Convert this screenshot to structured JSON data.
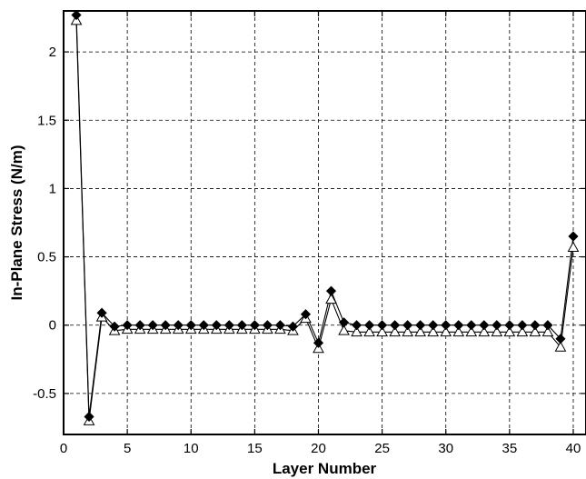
{
  "chart_data": {
    "type": "line",
    "title": "",
    "xlabel": "Layer Number",
    "ylabel": "In-Plane Stress (N/m)",
    "xlim": [
      0,
      41
    ],
    "ylim": [
      -0.8,
      2.3
    ],
    "x_ticks": [
      0,
      5,
      10,
      15,
      20,
      25,
      30,
      35,
      40
    ],
    "y_ticks": [
      -0.5,
      0,
      0.5,
      1,
      1.5,
      2
    ],
    "x_tick_labels": [
      "0",
      "5",
      "10",
      "15",
      "20",
      "25",
      "30",
      "35",
      "40"
    ],
    "y_tick_labels": [
      "-0.5",
      "0",
      "0.5",
      "1",
      "1.5",
      "2"
    ],
    "grid": true,
    "legend": "none",
    "x": [
      1,
      2,
      3,
      4,
      5,
      6,
      7,
      8,
      9,
      10,
      11,
      12,
      13,
      14,
      15,
      16,
      17,
      18,
      19,
      20,
      21,
      22,
      23,
      24,
      25,
      26,
      27,
      28,
      29,
      30,
      31,
      32,
      33,
      34,
      35,
      36,
      37,
      38,
      39,
      40
    ],
    "series": [
      {
        "marker": "filled-diamond",
        "color": "#000000",
        "values": [
          2.27,
          -0.67,
          0.09,
          -0.01,
          0.0,
          0.0,
          0.0,
          0.0,
          0.0,
          0.0,
          0.0,
          0.0,
          0.0,
          0.0,
          0.0,
          0.0,
          0.0,
          -0.01,
          0.08,
          -0.13,
          0.25,
          0.02,
          0.0,
          0.0,
          0.0,
          0.0,
          0.0,
          0.0,
          0.0,
          0.0,
          0.0,
          0.0,
          0.0,
          0.0,
          0.0,
          0.0,
          0.0,
          0.0,
          -0.1,
          0.65
        ]
      },
      {
        "marker": "open-triangle",
        "color": "#000000",
        "values": [
          2.23,
          -0.7,
          0.06,
          -0.04,
          -0.03,
          -0.03,
          -0.03,
          -0.03,
          -0.03,
          -0.03,
          -0.03,
          -0.03,
          -0.03,
          -0.03,
          -0.03,
          -0.03,
          -0.03,
          -0.04,
          0.05,
          -0.17,
          0.19,
          -0.04,
          -0.05,
          -0.05,
          -0.05,
          -0.05,
          -0.05,
          -0.05,
          -0.05,
          -0.05,
          -0.05,
          -0.05,
          -0.05,
          -0.05,
          -0.05,
          -0.05,
          -0.05,
          -0.05,
          -0.16,
          0.57
        ]
      }
    ]
  }
}
